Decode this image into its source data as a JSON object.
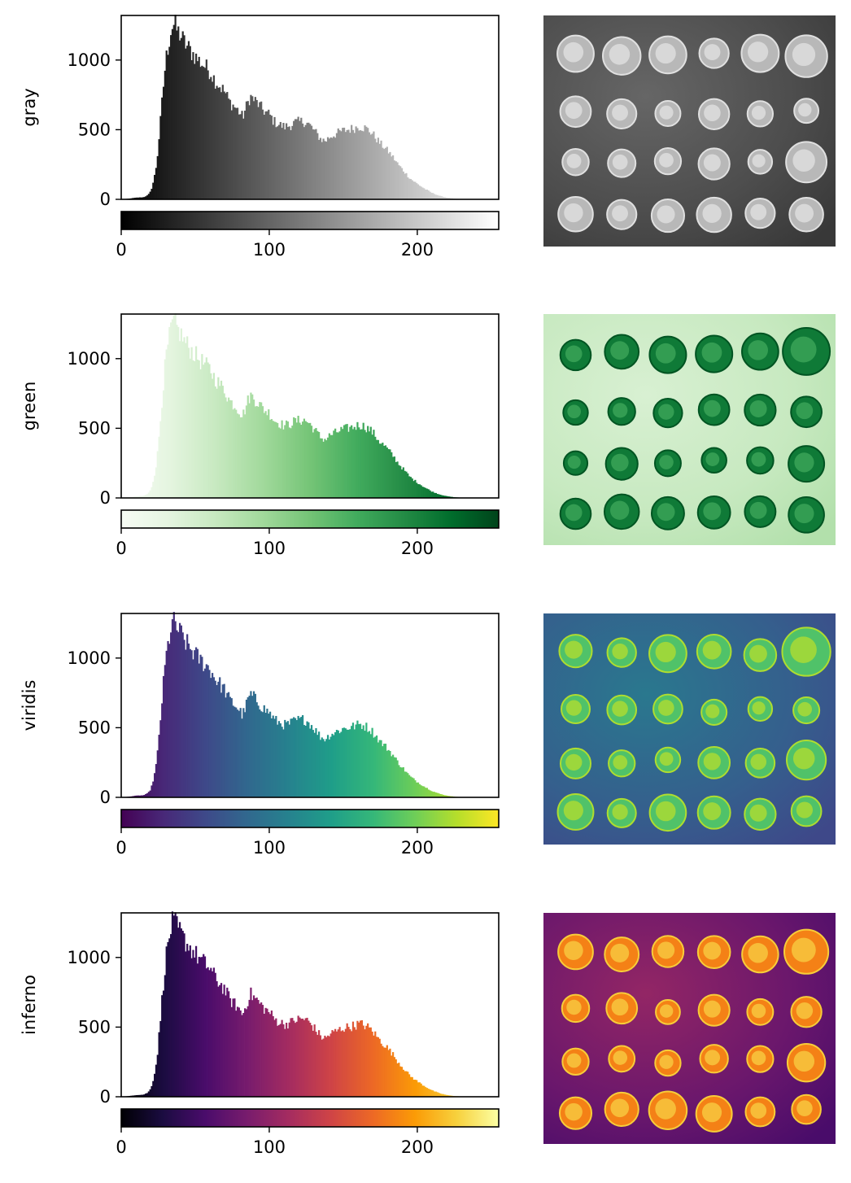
{
  "figure": {
    "colormap_stops": {
      "gray": [
        "#000000",
        "#ffffff"
      ],
      "green": [
        "#f7fcf5",
        "#e5f5e0",
        "#c7e9c0",
        "#a1d99b",
        "#74c476",
        "#41ab5d",
        "#238b45",
        "#006d2c",
        "#00441b"
      ],
      "viridis": [
        "#440154",
        "#482878",
        "#3e4989",
        "#31688e",
        "#26828e",
        "#1f9e89",
        "#35b779",
        "#6ece58",
        "#b5de2b",
        "#fde725"
      ],
      "inferno": [
        "#000004",
        "#1b0c41",
        "#4a0c6b",
        "#781c6d",
        "#a52c60",
        "#cf4446",
        "#ed6925",
        "#fb9b06",
        "#f7d13d",
        "#fcffa4"
      ]
    }
  },
  "chart_data": [
    {
      "type": "bar",
      "ylabel": "gray",
      "cmap": "gray",
      "xlim": [
        0,
        255
      ],
      "ylim": [
        0,
        1320
      ],
      "yticks": [
        "0",
        "500",
        "1000"
      ],
      "colorbar_ticks": [
        "0",
        "100",
        "200"
      ],
      "bin_width": 1,
      "histogram_profile": [
        [
          0,
          0
        ],
        [
          5,
          5
        ],
        [
          10,
          12
        ],
        [
          15,
          15
        ],
        [
          18,
          30
        ],
        [
          20,
          60
        ],
        [
          22,
          140
        ],
        [
          24,
          260
        ],
        [
          26,
          500
        ],
        [
          28,
          760
        ],
        [
          30,
          990
        ],
        [
          32,
          1120
        ],
        [
          34,
          1240
        ],
        [
          36,
          1255
        ],
        [
          38,
          1205
        ],
        [
          40,
          1180
        ],
        [
          42,
          1135
        ],
        [
          45,
          1090
        ],
        [
          48,
          1050
        ],
        [
          52,
          1000
        ],
        [
          56,
          960
        ],
        [
          60,
          920
        ],
        [
          63,
          860
        ],
        [
          66,
          820
        ],
        [
          70,
          770
        ],
        [
          73,
          700
        ],
        [
          75,
          680
        ],
        [
          78,
          650
        ],
        [
          82,
          590
        ],
        [
          85,
          680
        ],
        [
          87,
          740
        ],
        [
          89,
          720
        ],
        [
          92,
          690
        ],
        [
          95,
          650
        ],
        [
          98,
          620
        ],
        [
          100,
          610
        ],
        [
          103,
          560
        ],
        [
          106,
          540
        ],
        [
          110,
          520
        ],
        [
          114,
          530
        ],
        [
          117,
          550
        ],
        [
          120,
          555
        ],
        [
          123,
          560
        ],
        [
          126,
          545
        ],
        [
          129,
          510
        ],
        [
          132,
          470
        ],
        [
          135,
          430
        ],
        [
          138,
          420
        ],
        [
          141,
          450
        ],
        [
          145,
          470
        ],
        [
          149,
          490
        ],
        [
          153,
          500
        ],
        [
          157,
          510
        ],
        [
          161,
          525
        ],
        [
          165,
          510
        ],
        [
          169,
          480
        ],
        [
          172,
          440
        ],
        [
          175,
          400
        ],
        [
          179,
          360
        ],
        [
          183,
          310
        ],
        [
          187,
          250
        ],
        [
          191,
          200
        ],
        [
          195,
          150
        ],
        [
          200,
          110
        ],
        [
          205,
          75
        ],
        [
          210,
          45
        ],
        [
          215,
          25
        ],
        [
          220,
          12
        ],
        [
          225,
          5
        ],
        [
          230,
          2
        ],
        [
          240,
          0
        ],
        [
          255,
          0
        ]
      ]
    },
    {
      "type": "bar",
      "ylabel": "green",
      "cmap": "green",
      "xlim": [
        0,
        255
      ],
      "ylim": [
        0,
        1320
      ],
      "yticks": [
        "0",
        "500",
        "1000"
      ],
      "colorbar_ticks": [
        "0",
        "100",
        "200"
      ],
      "bin_width": 1,
      "histogram_profile": [
        [
          0,
          0
        ],
        [
          5,
          5
        ],
        [
          10,
          12
        ],
        [
          15,
          15
        ],
        [
          18,
          30
        ],
        [
          20,
          60
        ],
        [
          22,
          140
        ],
        [
          24,
          260
        ],
        [
          26,
          500
        ],
        [
          28,
          760
        ],
        [
          30,
          990
        ],
        [
          32,
          1120
        ],
        [
          34,
          1240
        ],
        [
          36,
          1255
        ],
        [
          38,
          1205
        ],
        [
          40,
          1180
        ],
        [
          42,
          1135
        ],
        [
          45,
          1090
        ],
        [
          48,
          1050
        ],
        [
          52,
          1000
        ],
        [
          56,
          960
        ],
        [
          60,
          920
        ],
        [
          63,
          860
        ],
        [
          66,
          820
        ],
        [
          70,
          770
        ],
        [
          73,
          700
        ],
        [
          75,
          680
        ],
        [
          78,
          650
        ],
        [
          82,
          590
        ],
        [
          85,
          680
        ],
        [
          87,
          740
        ],
        [
          89,
          720
        ],
        [
          92,
          690
        ],
        [
          95,
          650
        ],
        [
          98,
          620
        ],
        [
          100,
          610
        ],
        [
          103,
          560
        ],
        [
          106,
          540
        ],
        [
          110,
          520
        ],
        [
          114,
          530
        ],
        [
          117,
          550
        ],
        [
          120,
          555
        ],
        [
          123,
          560
        ],
        [
          126,
          545
        ],
        [
          129,
          510
        ],
        [
          132,
          470
        ],
        [
          135,
          430
        ],
        [
          138,
          420
        ],
        [
          141,
          450
        ],
        [
          145,
          470
        ],
        [
          149,
          490
        ],
        [
          153,
          500
        ],
        [
          157,
          510
        ],
        [
          161,
          525
        ],
        [
          165,
          510
        ],
        [
          169,
          480
        ],
        [
          172,
          440
        ],
        [
          175,
          400
        ],
        [
          179,
          360
        ],
        [
          183,
          310
        ],
        [
          187,
          250
        ],
        [
          191,
          200
        ],
        [
          195,
          150
        ],
        [
          200,
          110
        ],
        [
          205,
          75
        ],
        [
          210,
          45
        ],
        [
          215,
          25
        ],
        [
          220,
          12
        ],
        [
          225,
          5
        ],
        [
          230,
          2
        ],
        [
          240,
          0
        ],
        [
          255,
          0
        ]
      ]
    },
    {
      "type": "bar",
      "ylabel": "viridis",
      "cmap": "viridis",
      "xlim": [
        0,
        255
      ],
      "ylim": [
        0,
        1320
      ],
      "yticks": [
        "0",
        "500",
        "1000"
      ],
      "colorbar_ticks": [
        "0",
        "100",
        "200"
      ],
      "bin_width": 1,
      "histogram_profile": [
        [
          0,
          0
        ],
        [
          5,
          5
        ],
        [
          10,
          12
        ],
        [
          15,
          15
        ],
        [
          18,
          30
        ],
        [
          20,
          60
        ],
        [
          22,
          140
        ],
        [
          24,
          260
        ],
        [
          26,
          500
        ],
        [
          28,
          760
        ],
        [
          30,
          990
        ],
        [
          32,
          1120
        ],
        [
          34,
          1240
        ],
        [
          36,
          1255
        ],
        [
          38,
          1205
        ],
        [
          40,
          1180
        ],
        [
          42,
          1135
        ],
        [
          45,
          1090
        ],
        [
          48,
          1050
        ],
        [
          52,
          1000
        ],
        [
          56,
          960
        ],
        [
          60,
          920
        ],
        [
          63,
          860
        ],
        [
          66,
          820
        ],
        [
          70,
          770
        ],
        [
          73,
          700
        ],
        [
          75,
          680
        ],
        [
          78,
          650
        ],
        [
          82,
          590
        ],
        [
          85,
          680
        ],
        [
          87,
          740
        ],
        [
          89,
          720
        ],
        [
          92,
          690
        ],
        [
          95,
          650
        ],
        [
          98,
          620
        ],
        [
          100,
          610
        ],
        [
          103,
          560
        ],
        [
          106,
          540
        ],
        [
          110,
          520
        ],
        [
          114,
          530
        ],
        [
          117,
          550
        ],
        [
          120,
          555
        ],
        [
          123,
          560
        ],
        [
          126,
          545
        ],
        [
          129,
          510
        ],
        [
          132,
          470
        ],
        [
          135,
          430
        ],
        [
          138,
          420
        ],
        [
          141,
          450
        ],
        [
          145,
          470
        ],
        [
          149,
          490
        ],
        [
          153,
          500
        ],
        [
          157,
          510
        ],
        [
          161,
          525
        ],
        [
          165,
          510
        ],
        [
          169,
          480
        ],
        [
          172,
          440
        ],
        [
          175,
          400
        ],
        [
          179,
          360
        ],
        [
          183,
          310
        ],
        [
          187,
          250
        ],
        [
          191,
          200
        ],
        [
          195,
          150
        ],
        [
          200,
          110
        ],
        [
          205,
          75
        ],
        [
          210,
          45
        ],
        [
          215,
          25
        ],
        [
          220,
          12
        ],
        [
          225,
          5
        ],
        [
          230,
          2
        ],
        [
          240,
          0
        ],
        [
          255,
          0
        ]
      ]
    },
    {
      "type": "bar",
      "ylabel": "inferno",
      "cmap": "inferno",
      "xlim": [
        0,
        255
      ],
      "ylim": [
        0,
        1320
      ],
      "yticks": [
        "0",
        "500",
        "1000"
      ],
      "colorbar_ticks": [
        "0",
        "100",
        "200"
      ],
      "bin_width": 1,
      "histogram_profile": [
        [
          0,
          0
        ],
        [
          5,
          5
        ],
        [
          10,
          12
        ],
        [
          15,
          15
        ],
        [
          18,
          30
        ],
        [
          20,
          60
        ],
        [
          22,
          140
        ],
        [
          24,
          260
        ],
        [
          26,
          500
        ],
        [
          28,
          760
        ],
        [
          30,
          990
        ],
        [
          32,
          1120
        ],
        [
          34,
          1240
        ],
        [
          36,
          1255
        ],
        [
          38,
          1205
        ],
        [
          40,
          1180
        ],
        [
          42,
          1135
        ],
        [
          45,
          1090
        ],
        [
          48,
          1050
        ],
        [
          52,
          1000
        ],
        [
          56,
          960
        ],
        [
          60,
          920
        ],
        [
          63,
          860
        ],
        [
          66,
          820
        ],
        [
          70,
          770
        ],
        [
          73,
          700
        ],
        [
          75,
          680
        ],
        [
          78,
          650
        ],
        [
          82,
          590
        ],
        [
          85,
          680
        ],
        [
          87,
          740
        ],
        [
          89,
          720
        ],
        [
          92,
          690
        ],
        [
          95,
          650
        ],
        [
          98,
          620
        ],
        [
          100,
          610
        ],
        [
          103,
          560
        ],
        [
          106,
          540
        ],
        [
          110,
          520
        ],
        [
          114,
          530
        ],
        [
          117,
          550
        ],
        [
          120,
          555
        ],
        [
          123,
          560
        ],
        [
          126,
          545
        ],
        [
          129,
          510
        ],
        [
          132,
          470
        ],
        [
          135,
          430
        ],
        [
          138,
          420
        ],
        [
          141,
          450
        ],
        [
          145,
          470
        ],
        [
          149,
          490
        ],
        [
          153,
          500
        ],
        [
          157,
          510
        ],
        [
          161,
          525
        ],
        [
          165,
          510
        ],
        [
          169,
          480
        ],
        [
          172,
          440
        ],
        [
          175,
          400
        ],
        [
          179,
          360
        ],
        [
          183,
          310
        ],
        [
          187,
          250
        ],
        [
          191,
          200
        ],
        [
          195,
          150
        ],
        [
          200,
          110
        ],
        [
          205,
          75
        ],
        [
          210,
          45
        ],
        [
          215,
          25
        ],
        [
          220,
          12
        ],
        [
          225,
          5
        ],
        [
          230,
          2
        ],
        [
          240,
          0
        ],
        [
          255,
          0
        ]
      ]
    }
  ],
  "coin_image": {
    "rows": [
      6,
      6,
      6,
      6
    ]
  }
}
